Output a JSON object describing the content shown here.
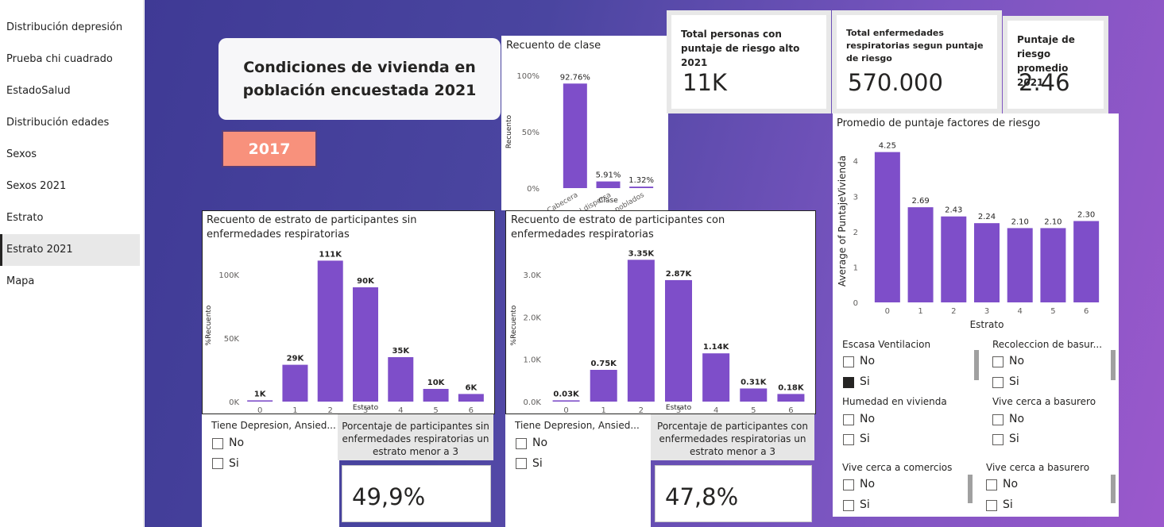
{
  "sidebar": {
    "items": [
      {
        "label": "Distribución depresión",
        "active": false
      },
      {
        "label": "Prueba chi cuadrado",
        "active": false
      },
      {
        "label": "EstadoSalud",
        "active": false
      },
      {
        "label": "Distribución edades",
        "active": false
      },
      {
        "label": "Sexos",
        "active": false
      },
      {
        "label": "Sexos 2021",
        "active": false
      },
      {
        "label": "Estrato",
        "active": false
      },
      {
        "label": "Estrato 2021",
        "active": true
      },
      {
        "label": "Mapa",
        "active": false
      }
    ]
  },
  "header": {
    "title": "Condiciones de vivienda en población encuestada 2021",
    "year_button": "2017"
  },
  "kpis": {
    "alto": {
      "label": "Total personas con puntaje de riesgo alto 2021",
      "value": "11K"
    },
    "resp": {
      "label": "Total enfermedades respiratorias segun puntaje de riesgo",
      "value": "570.000"
    },
    "prom": {
      "label": "Puntaje de riesgo promedio 2021",
      "value": "2.46"
    }
  },
  "colors": {
    "bar": "#7e4ec9",
    "accent": "#f8917c"
  },
  "chart_data": [
    {
      "type": "bar",
      "title": "Recuento de clase",
      "xlabel": "Clase",
      "ylabel": "Recuento",
      "categories": [
        "Cabecera",
        "Area rural dispersa",
        "Centros poblados"
      ],
      "values": [
        92.76,
        5.91,
        1.32
      ],
      "value_labels": [
        "92.76%",
        "5.91%",
        "1.32%"
      ],
      "yticks": [
        "0%",
        "50%",
        "100%"
      ],
      "ylim": [
        0,
        100
      ]
    },
    {
      "type": "bar",
      "title": "Recuento de estrato de participantes sin enfermedades respiratorias",
      "xlabel": "Estrato",
      "ylabel": "%Recuento",
      "categories": [
        "0",
        "1",
        "2",
        "3",
        "4",
        "5",
        "6"
      ],
      "values": [
        1,
        29,
        111,
        90,
        35,
        10,
        6
      ],
      "value_labels": [
        "1K",
        "29K",
        "111K",
        "90K",
        "35K",
        "10K",
        "6K"
      ],
      "yticks": [
        "0K",
        "50K",
        "100K"
      ],
      "ylim": [
        0,
        120
      ]
    },
    {
      "type": "bar",
      "title": "Recuento de estrato de participantes con enfermedades respiratorias",
      "xlabel": "Estrato",
      "ylabel": "%Recuento",
      "categories": [
        "0",
        "1",
        "2",
        "3",
        "4",
        "5",
        "6"
      ],
      "values": [
        0.03,
        0.75,
        3.35,
        2.87,
        1.14,
        0.31,
        0.18
      ],
      "value_labels": [
        "0.03K",
        "0.75K",
        "3.35K",
        "2.87K",
        "1.14K",
        "0.31K",
        "0.18K"
      ],
      "yticks": [
        "0.0K",
        "1.0K",
        "2.0K",
        "3.0K"
      ],
      "ylim": [
        0,
        3.6
      ]
    },
    {
      "type": "bar",
      "title": "Promedio de puntaje factores de riesgo",
      "xlabel": "Estrato",
      "ylabel": "Average of PuntajeVivienda",
      "categories": [
        "0",
        "1",
        "2",
        "3",
        "4",
        "5",
        "6"
      ],
      "values": [
        4.25,
        2.69,
        2.43,
        2.24,
        2.1,
        2.1,
        2.3
      ],
      "value_labels": [
        "4.25",
        "2.69",
        "2.43",
        "2.24",
        "2.10",
        "2.10",
        "2.30"
      ],
      "yticks": [
        "0",
        "1",
        "2",
        "3",
        "4"
      ],
      "ylim": [
        0,
        4.6
      ]
    }
  ],
  "slicers": {
    "dep_left": {
      "title": "Tiene Depresion, Ansied...",
      "options": [
        {
          "label": "No",
          "checked": false
        },
        {
          "label": "Si",
          "checked": false
        }
      ]
    },
    "dep_right": {
      "title": "Tiene Depresion, Ansied...",
      "options": [
        {
          "label": "No",
          "checked": false
        },
        {
          "label": "Si",
          "checked": false
        }
      ]
    },
    "ventilacion": {
      "title": "Escasa Ventilacion",
      "options": [
        {
          "label": "No",
          "checked": false
        },
        {
          "label": "Si",
          "checked": true
        }
      ]
    },
    "recoleccion": {
      "title": "Recoleccion de basur...",
      "options": [
        {
          "label": "No",
          "checked": false
        },
        {
          "label": "Si",
          "checked": false
        }
      ]
    },
    "humedad": {
      "title": "Humedad en vivienda",
      "options": [
        {
          "label": "No",
          "checked": false
        },
        {
          "label": "Si",
          "checked": false
        }
      ]
    },
    "basurero1": {
      "title": "Vive cerca a basurero",
      "options": [
        {
          "label": "No",
          "checked": false
        },
        {
          "label": "Si",
          "checked": false
        }
      ]
    },
    "comercios": {
      "title": "Vive cerca a comercios",
      "options": [
        {
          "label": "No",
          "checked": false
        },
        {
          "label": "Si",
          "checked": false
        }
      ]
    },
    "basurero2": {
      "title": "Vive cerca a basurero",
      "options": [
        {
          "label": "No",
          "checked": false
        },
        {
          "label": "Si",
          "checked": false
        }
      ]
    }
  },
  "percent_cards": {
    "sin": {
      "label": "Porcentaje de participantes sin enfermedades respiratorias un estrato menor a 3",
      "value": "49,9%"
    },
    "con": {
      "label": "Porcentaje de participantes con enfermedades respiratorias un estrato menor a 3",
      "value": "47,8%"
    }
  }
}
